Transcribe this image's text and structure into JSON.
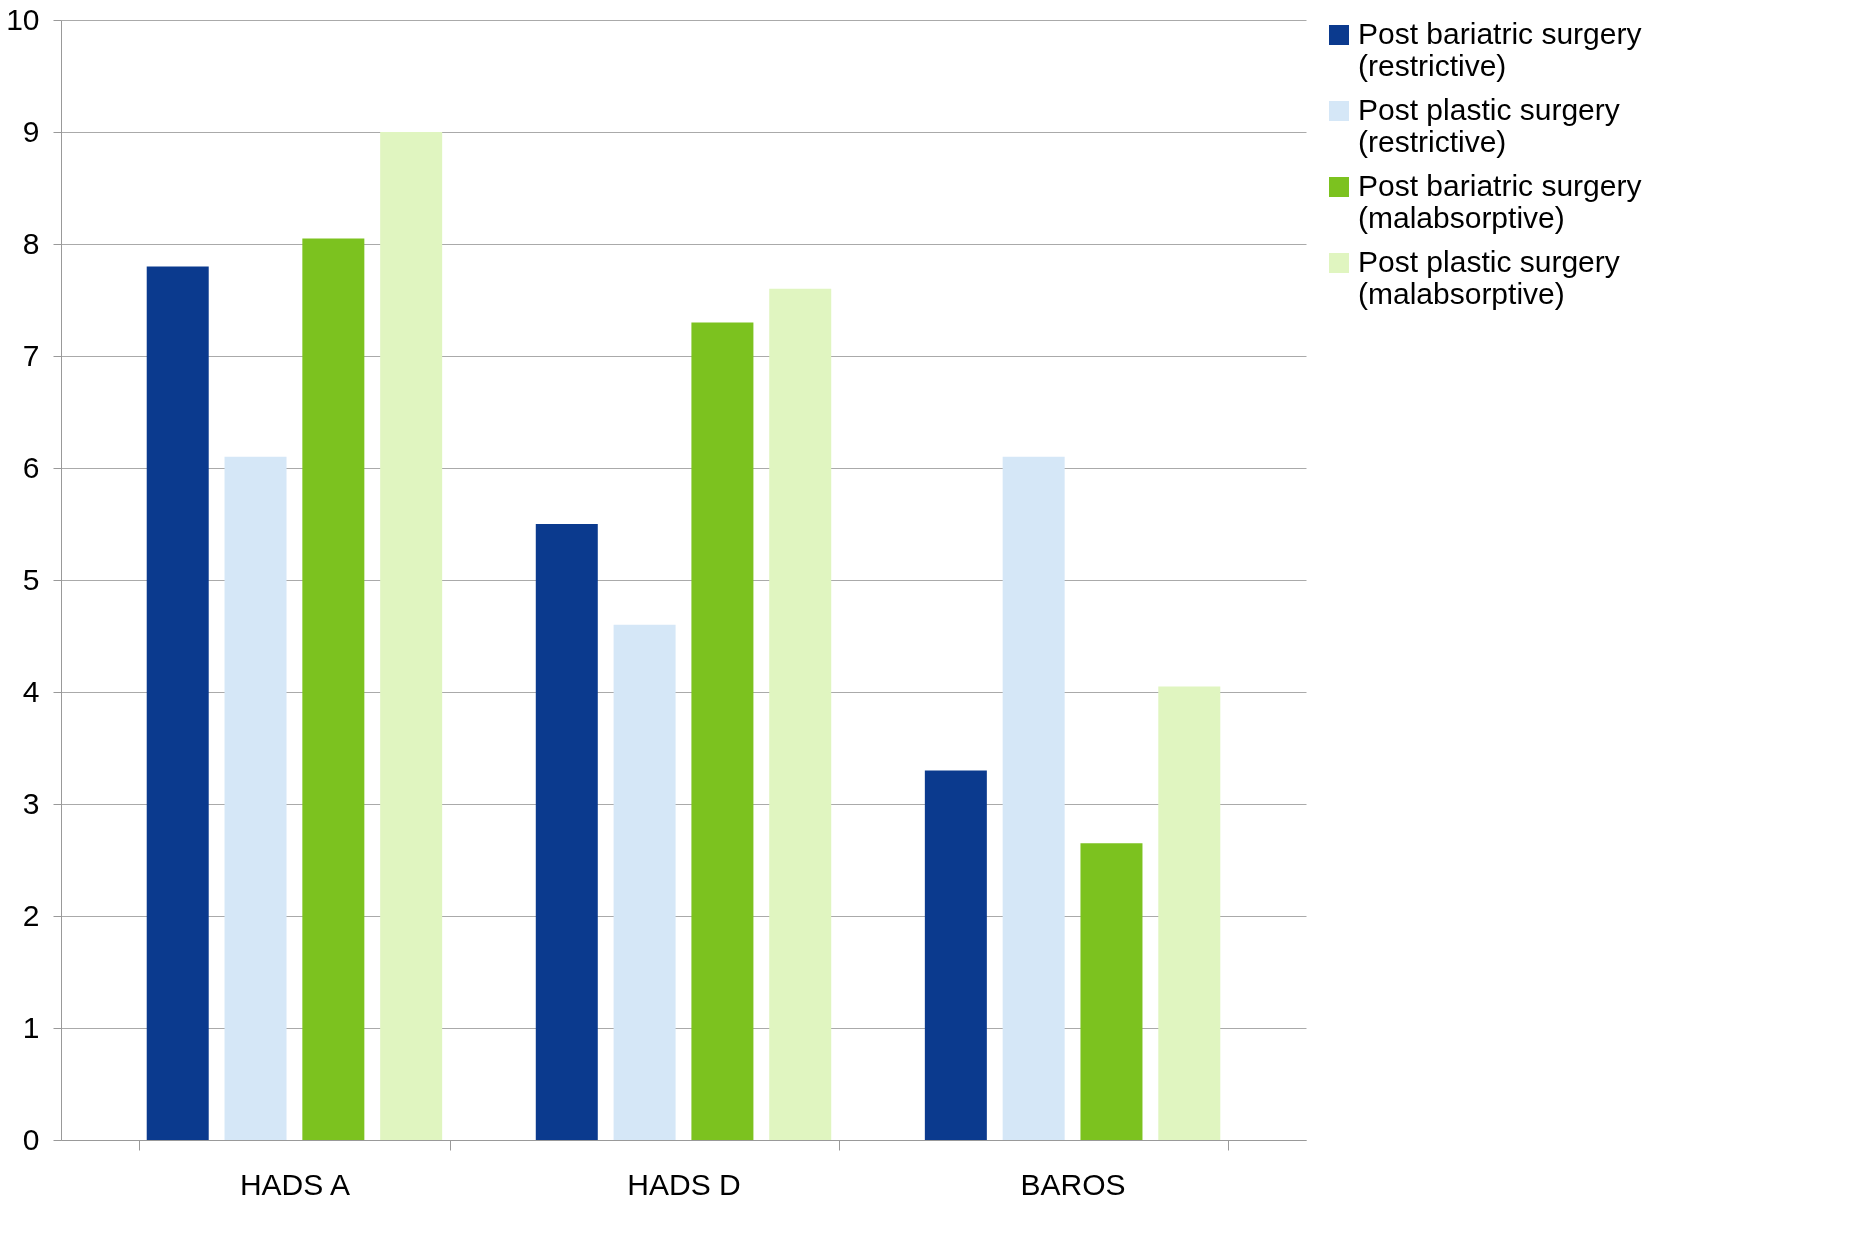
{
  "chart_data": {
    "type": "bar",
    "categories": [
      "HADS A",
      "HADS D",
      "BAROS"
    ],
    "series": [
      {
        "name": "Post bariatric surgery (restrictive)",
        "color": "#0b3a8e",
        "values": [
          7.8,
          5.5,
          3.3
        ]
      },
      {
        "name": "Post plastic surgery (restrictive)",
        "color": "#d5e7f7",
        "values": [
          6.1,
          4.6,
          6.1
        ]
      },
      {
        "name": "Post bariatric surgery (malabsorptive)",
        "color": "#7cc21f",
        "values": [
          8.05,
          7.3,
          2.65
        ]
      },
      {
        "name": "Post plastic surgery (malabsorptive)",
        "color": "#e0f5c0",
        "values": [
          9.0,
          7.6,
          4.05
        ]
      }
    ],
    "ylim": [
      0,
      10
    ],
    "yticks": [
      0,
      1,
      2,
      3,
      4,
      5,
      6,
      7,
      8,
      9,
      10
    ],
    "grid": "y",
    "legend": "right"
  }
}
